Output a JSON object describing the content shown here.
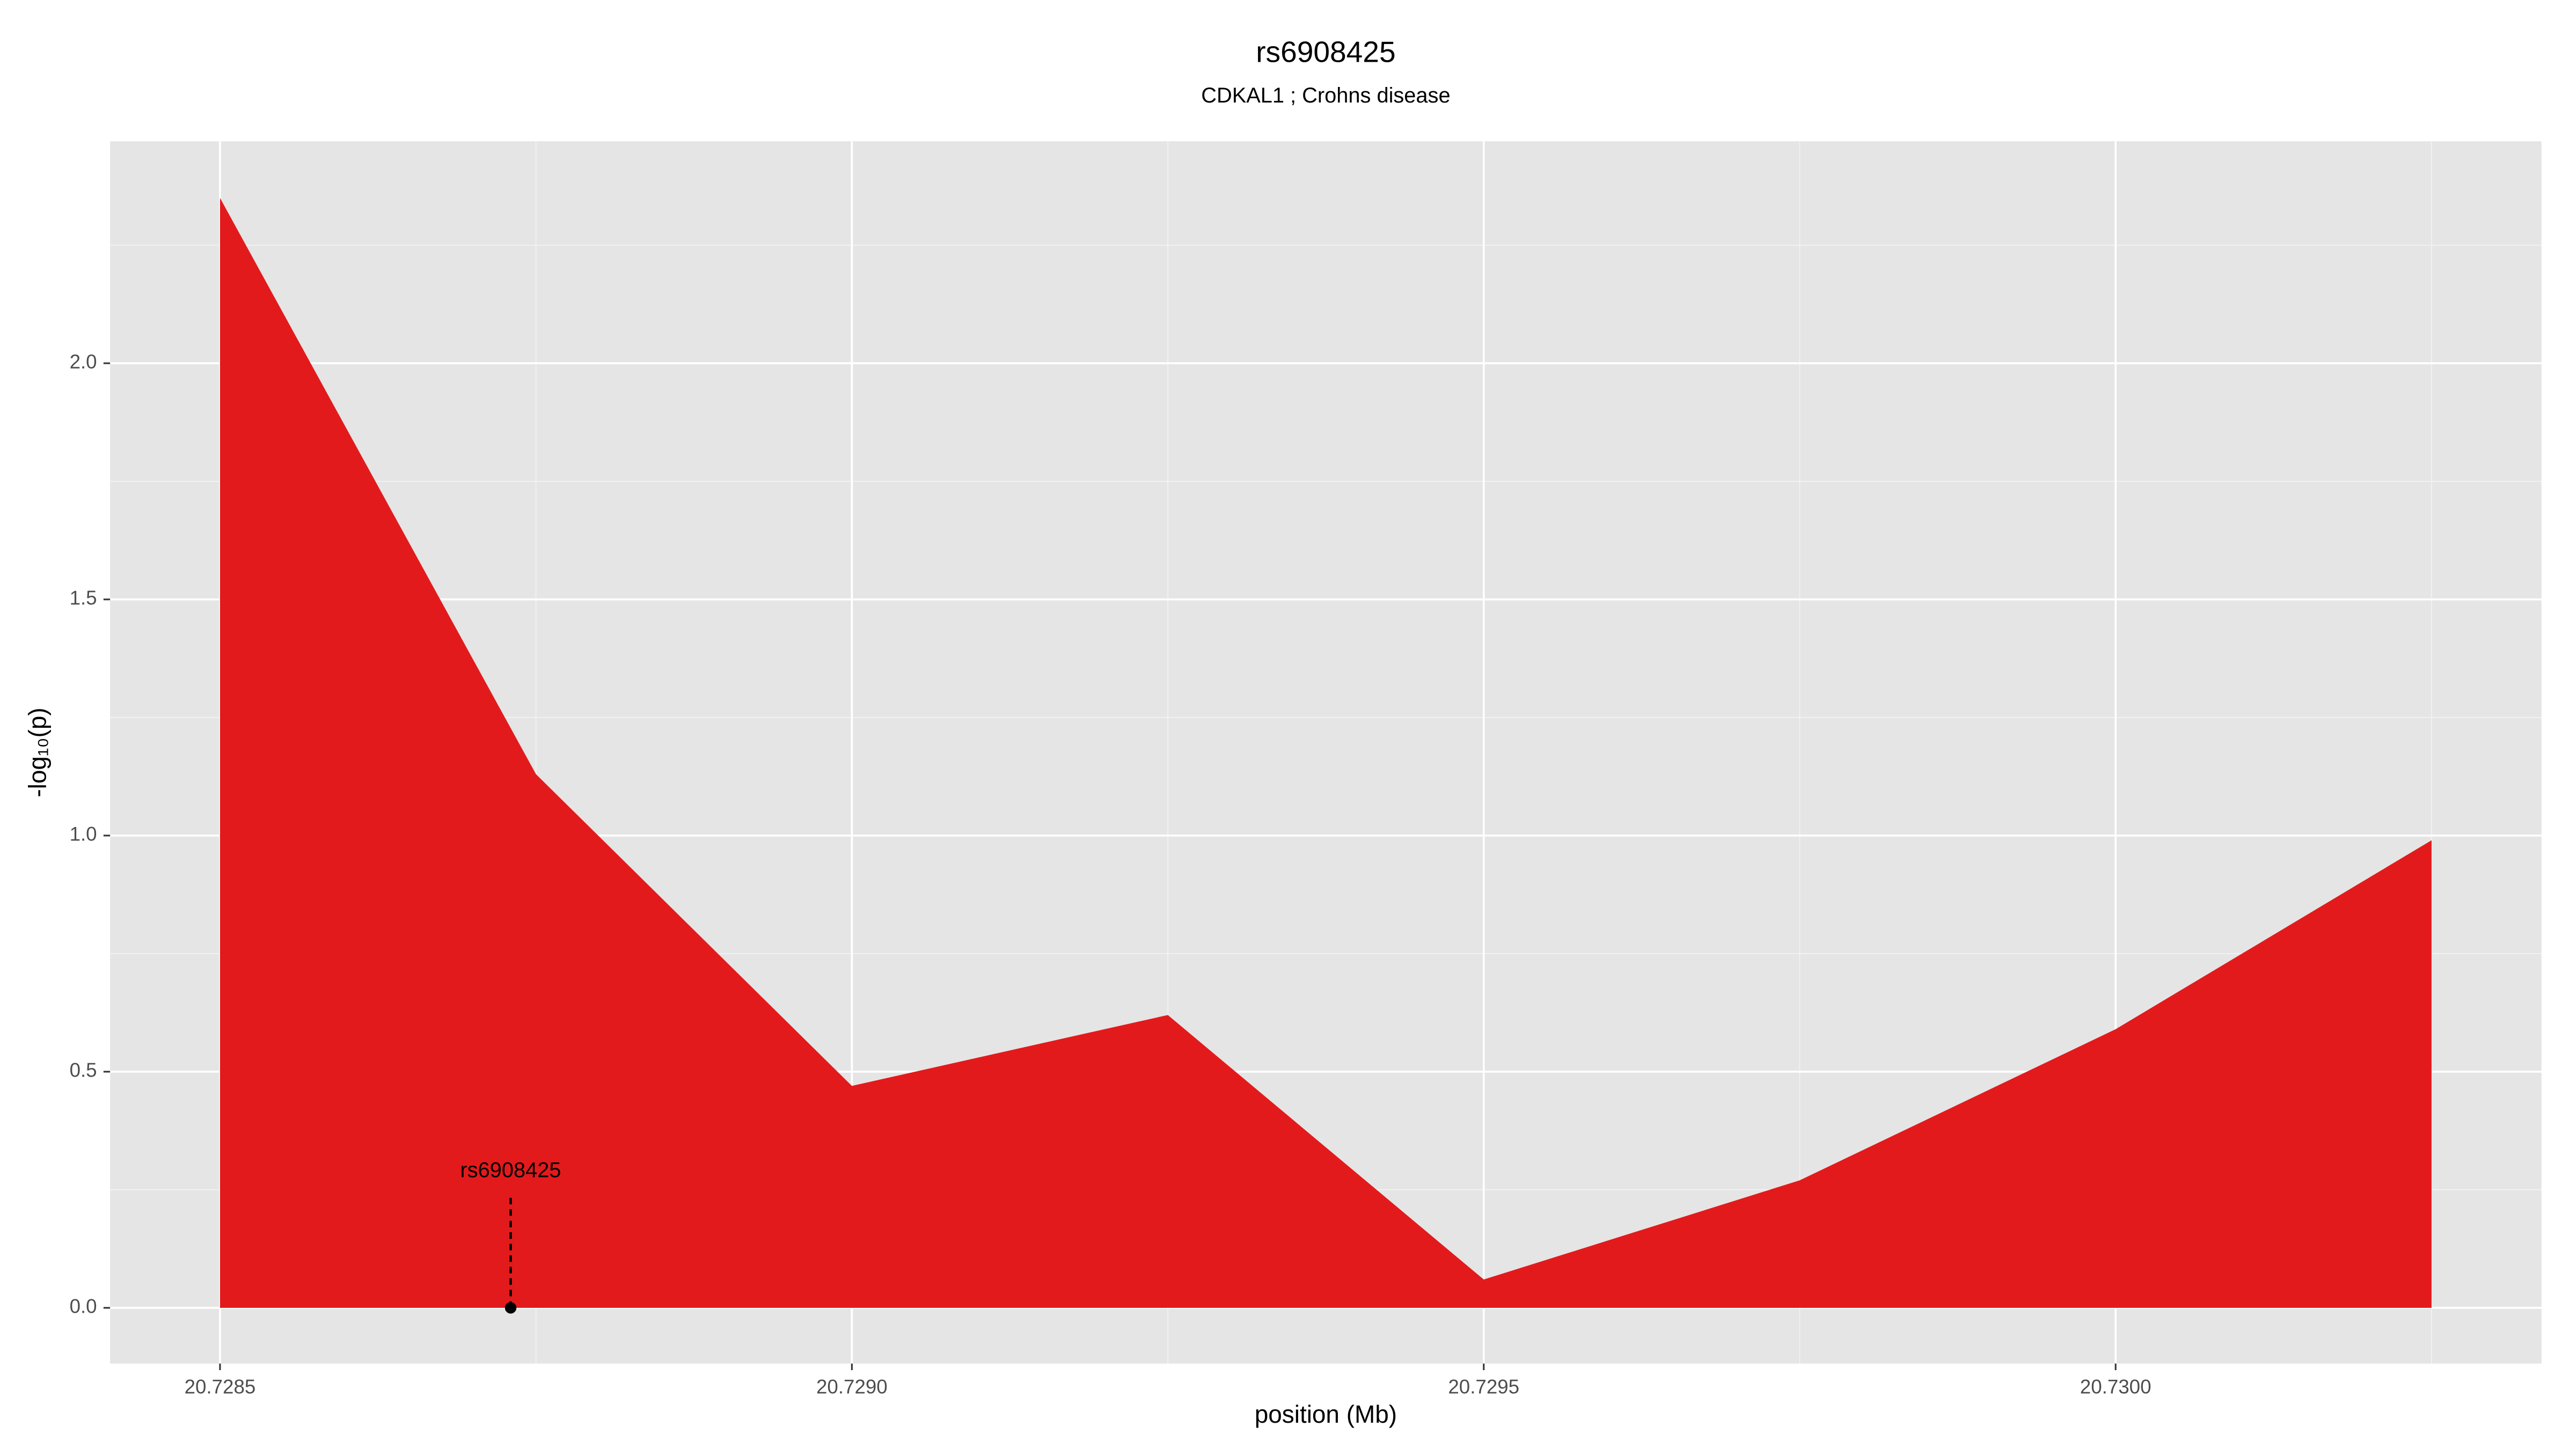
{
  "chart_data": {
    "type": "area",
    "title": "rs6908425",
    "subtitle": "CDKAL1 ; Crohns disease",
    "x_label": "position (Mb)",
    "y_label": "-log₁₀(p)",
    "x": [
      20.7285,
      20.72875,
      20.729,
      20.72925,
      20.7295,
      20.72975,
      20.73,
      20.73025
    ],
    "values": [
      2.35,
      1.13,
      0.47,
      0.62,
      0.06,
      0.27,
      0.59,
      0.99
    ],
    "color": "#e31a1c",
    "xlim": [
      20.728413,
      20.730337
    ],
    "ylim": [
      -0.118,
      2.47
    ],
    "xticks": [
      20.7285,
      {
        "value": 20.729,
        "label": "20.7290"
      },
      20.7295,
      {
        "value": 20.73,
        "label": "20.7300"
      }
    ],
    "yticks": [
      {
        "value": 0,
        "label": "0.0"
      },
      0.5,
      {
        "value": 1,
        "label": "1.0"
      },
      1.5,
      {
        "value": 2,
        "label": "2.0"
      }
    ],
    "grid": true,
    "annotation": {
      "text": "rs6908425",
      "x": 20.72873,
      "y": 0
    }
  }
}
